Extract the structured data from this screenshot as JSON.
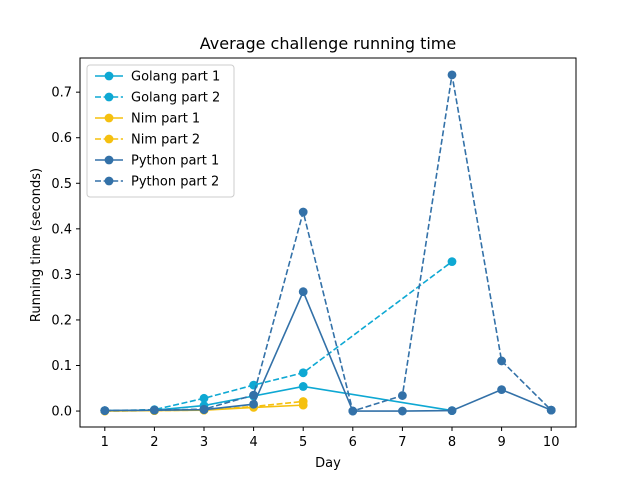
{
  "chart_data": {
    "type": "line",
    "title": "Average challenge running time",
    "xlabel": "Day",
    "ylabel": "Running time (seconds)",
    "xlim": [
      0.5,
      10.5
    ],
    "ylim": [
      -0.035,
      0.775
    ],
    "xticks": [
      1,
      2,
      3,
      4,
      5,
      6,
      7,
      8,
      9,
      10
    ],
    "yticks": [
      0.0,
      0.1,
      0.2,
      0.3,
      0.4,
      0.5,
      0.6,
      0.7
    ],
    "grid": false,
    "legend_position": "top-left",
    "series": [
      {
        "name": "Golang part 1",
        "color": "#0ea8d3",
        "dashed": false,
        "x": [
          1,
          2,
          3,
          4,
          5,
          8
        ],
        "y": [
          0.001,
          0.002,
          0.012,
          0.033,
          0.054,
          0.001
        ]
      },
      {
        "name": "Golang part 2",
        "color": "#0ea8d3",
        "dashed": true,
        "x": [
          1,
          2,
          3,
          4,
          5,
          8
        ],
        "y": [
          0.001,
          0.003,
          0.028,
          0.057,
          0.084,
          0.328
        ]
      },
      {
        "name": "Nim part 1",
        "color": "#f5c00f",
        "dashed": false,
        "x": [
          1,
          2,
          3,
          4,
          5
        ],
        "y": [
          0.0,
          0.001,
          0.002,
          0.008,
          0.013
        ]
      },
      {
        "name": "Nim part 2",
        "color": "#f5c00f",
        "dashed": true,
        "x": [
          1,
          2,
          3,
          4,
          5
        ],
        "y": [
          0.0,
          0.001,
          0.002,
          0.01,
          0.021
        ]
      },
      {
        "name": "Python part 1",
        "color": "#3371a8",
        "dashed": false,
        "x": [
          1,
          2,
          3,
          4,
          5,
          6,
          7,
          8,
          9,
          10
        ],
        "y": [
          0.001,
          0.002,
          0.003,
          0.015,
          0.262,
          0.0,
          0.0,
          0.001,
          0.047,
          0.002
        ]
      },
      {
        "name": "Python part 2",
        "color": "#3371a8",
        "dashed": true,
        "x": [
          1,
          2,
          3,
          4,
          5,
          6,
          7,
          8,
          9,
          10
        ],
        "y": [
          0.001,
          0.002,
          0.004,
          0.035,
          0.437,
          0.0,
          0.034,
          0.738,
          0.11,
          0.002
        ]
      }
    ]
  }
}
